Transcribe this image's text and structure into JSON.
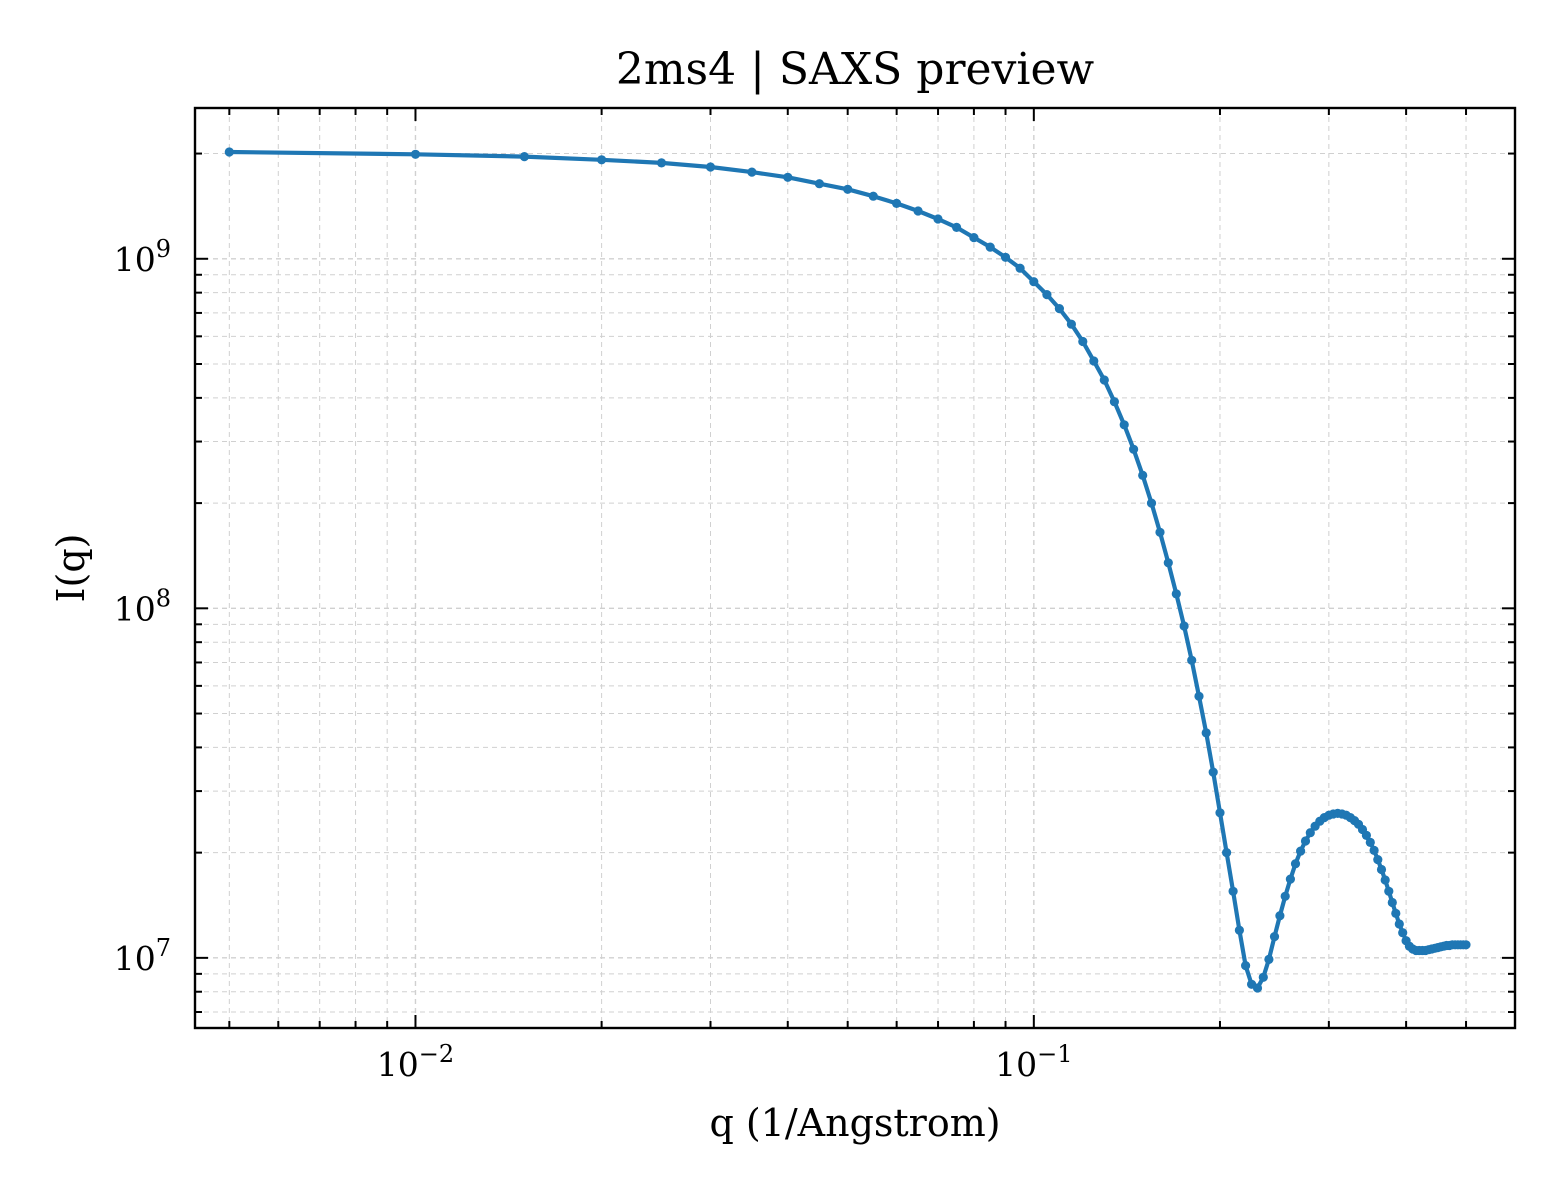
{
  "chart_data": {
    "type": "line",
    "title": "2ms4 | SAXS preview",
    "xlabel": "q (1/Angstrom)",
    "ylabel": "I(q)",
    "xscale": "log",
    "yscale": "log",
    "xlim": [
      0.0044,
      0.6
    ],
    "ylim": [
      6300000.0,
      2700000000.0
    ],
    "grid": true,
    "legend": "none",
    "x_ticks": [
      {
        "value": 0.01,
        "base": "10",
        "exp": "−2"
      },
      {
        "value": 0.1,
        "base": "10",
        "exp": "−1"
      }
    ],
    "y_ticks": [
      {
        "value": 10000000.0,
        "base": "10",
        "exp": "7"
      },
      {
        "value": 100000000.0,
        "base": "10",
        "exp": "8"
      },
      {
        "value": 1000000000.0,
        "base": "10",
        "exp": "9"
      }
    ],
    "colors": {
      "series": "#1f77b4",
      "grid": "#d0d0d0",
      "axes": "#000000"
    },
    "series": [
      {
        "x": [
          0.005,
          0.01,
          0.015,
          0.02,
          0.025,
          0.03,
          0.035,
          0.04,
          0.045,
          0.05,
          0.055,
          0.06,
          0.065,
          0.07,
          0.075,
          0.08,
          0.085,
          0.09,
          0.095,
          0.1,
          0.105,
          0.11,
          0.115,
          0.12,
          0.125,
          0.13,
          0.135,
          0.14,
          0.145,
          0.15,
          0.155,
          0.16,
          0.165,
          0.17,
          0.175,
          0.18,
          0.185,
          0.19,
          0.195,
          0.2,
          0.205,
          0.21,
          0.215,
          0.22,
          0.225,
          0.23,
          0.235,
          0.24,
          0.245,
          0.25,
          0.255,
          0.26,
          0.265,
          0.27,
          0.275,
          0.28,
          0.285,
          0.29,
          0.295,
          0.3,
          0.305,
          0.31,
          0.315,
          0.32,
          0.325,
          0.33,
          0.335,
          0.34,
          0.345,
          0.35,
          0.355,
          0.36,
          0.365,
          0.37,
          0.375,
          0.38,
          0.385,
          0.39,
          0.395,
          0.4,
          0.405,
          0.41,
          0.415,
          0.42,
          0.425,
          0.43,
          0.435,
          0.44,
          0.445,
          0.45,
          0.455,
          0.46,
          0.465,
          0.47,
          0.475,
          0.48,
          0.485,
          0.49,
          0.495,
          0.5
        ],
        "y": [
          2020000000.0,
          1990000000.0,
          1960000000.0,
          1920000000.0,
          1880000000.0,
          1830000000.0,
          1770000000.0,
          1710000000.0,
          1640000000.0,
          1580000000.0,
          1510000000.0,
          1440000000.0,
          1370000000.0,
          1300000000.0,
          1230000000.0,
          1150000000.0,
          1080000000.0,
          1010000000.0,
          940000000.0,
          860000000.0,
          790000000.0,
          720000000.0,
          650000000.0,
          580000000.0,
          510000000.0,
          450000000.0,
          390000000.0,
          335000000.0,
          285000000.0,
          240000000.0,
          200000000.0,
          165000000.0,
          135000000.0,
          110000000.0,
          89000000.0,
          71000000.0,
          56000000.0,
          44000000.0,
          34000000.0,
          26000000.0,
          20000000.0,
          15500000.0,
          12000000.0,
          9500000.0,
          8400000.0,
          8200000.0,
          8800000.0,
          9900000.0,
          11500000.0,
          13200000.0,
          15000000.0,
          16800000.0,
          18600000.0,
          20200000.0,
          21600000.0,
          22800000.0,
          23800000.0,
          24600000.0,
          25200000.0,
          25600000.0,
          25800000.0,
          25900000.0,
          25800000.0,
          25600000.0,
          25200000.0,
          24700000.0,
          24100000.0,
          23300000.0,
          22400000.0,
          21400000.0,
          20300000.0,
          19100000.0,
          17900000.0,
          16700000.0,
          15500000.0,
          14400000.0,
          13400000.0,
          12500000.0,
          11800000.0,
          11200000.0,
          10800000.0,
          10600000.0,
          10500000.0,
          10500000.0,
          10500000.0,
          10500000.0,
          10550000.0,
          10600000.0,
          10650000.0,
          10700000.0,
          10750000.0,
          10800000.0,
          10850000.0,
          10850000.0,
          10900000.0,
          10900000.0,
          10900000.0,
          10900000.0,
          10900000.0,
          10900000.0
        ]
      }
    ]
  }
}
